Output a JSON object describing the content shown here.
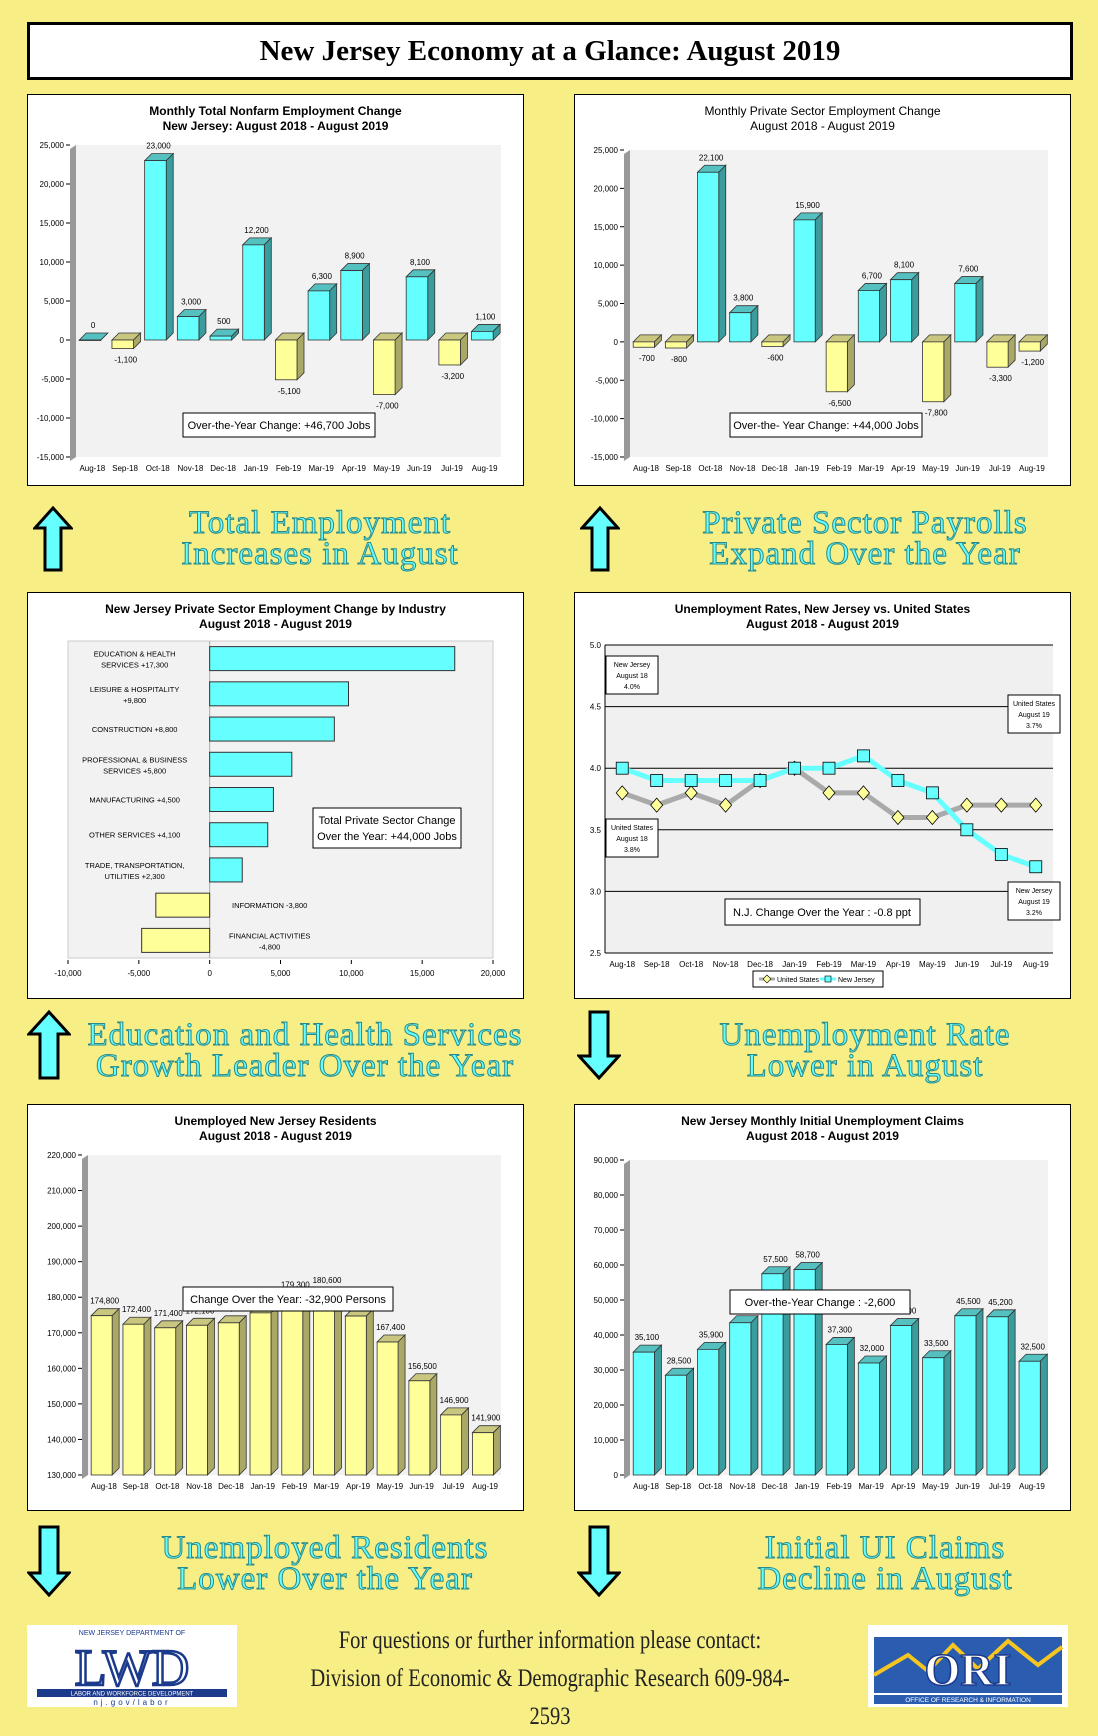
{
  "page": {
    "title": "New Jersey Economy at a Glance: August 2019",
    "footer_line1": "For questions or further information please contact:",
    "footer_line2": "Division of Economic & Demographic Research 609-984-2593",
    "logo_left": {
      "top_text": "NEW JERSEY DEPARTMENT OF",
      "main": "LWD",
      "sub": "LABOR AND WORKFORCE DEVELOPMENT",
      "url_text": "nj.gov/labor"
    },
    "logo_right": {
      "main": "ORI",
      "sub": "OFFICE OF RESEARCH & INFORMATION"
    },
    "colors": {
      "background": "#f7ef86",
      "cyan": "#66ffff",
      "yellow": "#ffff99",
      "headline": "#66ffff"
    }
  },
  "headlines": [
    {
      "line1": "Total Employment",
      "line2": "Increases in August",
      "arrow": "up"
    },
    {
      "line1": "Private Sector Payrolls",
      "line2": "Expand Over the Year",
      "arrow": "up"
    },
    {
      "line1": "Education and Health Services",
      "line2": "Growth Leader Over the Year",
      "arrow": "up"
    },
    {
      "line1": "Unemployment Rate",
      "line2": "Lower in August",
      "arrow": "down"
    },
    {
      "line1": "Unemployed Residents",
      "line2": "Lower Over the Year",
      "arrow": "down"
    },
    {
      "line1": "Initial UI Claims",
      "line2": "Decline in August",
      "arrow": "down"
    }
  ],
  "chart_data": [
    {
      "id": "total-nonfarm",
      "type": "bar",
      "title": "Monthly Total Nonfarm Employment Change",
      "subtitle": "New Jersey: August 2018 - August 2019",
      "categories": [
        "Aug-18",
        "Sep-18",
        "Oct-18",
        "Nov-18",
        "Dec-18",
        "Jan-19",
        "Feb-19",
        "Mar-19",
        "Apr-19",
        "May-19",
        "Jun-19",
        "Jul-19",
        "Aug-19"
      ],
      "values": [
        0,
        -1100,
        23000,
        3000,
        500,
        12200,
        -5100,
        6300,
        8900,
        -7000,
        8100,
        -3200,
        1100
      ],
      "labels": [
        "0",
        "-1,100",
        "23,000",
        "3,000",
        "500",
        "12,200",
        "-5,100",
        "6,300",
        "8,900",
        "-7,000",
        "8,100",
        "-3,200",
        "1,100"
      ],
      "ylim": [
        -15000,
        25000
      ],
      "yticks": [
        25000,
        20000,
        15000,
        10000,
        5000,
        0,
        -5000,
        -10000,
        -15000
      ],
      "ytick_labels": [
        "25,000",
        "20,000",
        "15,000",
        "10,000",
        "5,000",
        "0",
        "-5,000",
        "-10,000",
        "-15,000"
      ],
      "annotation": "Over-the-Year Change: +46,700 Jobs",
      "xlabel": "",
      "ylabel": ""
    },
    {
      "id": "private-sector",
      "type": "bar",
      "title": "Monthly Private Sector Employment Change",
      "subtitle": "August 2018 - August 2019",
      "categories": [
        "Aug-18",
        "Sep-18",
        "Oct-18",
        "Nov-18",
        "Dec-18",
        "Jan-19",
        "Feb-19",
        "Mar-19",
        "Apr-19",
        "May-19",
        "Jun-19",
        "Jul-19",
        "Aug-19"
      ],
      "values": [
        -700,
        -800,
        22100,
        3800,
        -600,
        15900,
        -6500,
        6700,
        8100,
        -7800,
        7600,
        -3300,
        -1200
      ],
      "labels": [
        "-700",
        "-800",
        "22,100",
        "3,800",
        "-600",
        "15,900",
        "-6,500",
        "6,700",
        "8,100",
        "-7,800",
        "7,600",
        "-3,300",
        "-1,200"
      ],
      "ylim": [
        -15000,
        25000
      ],
      "yticks": [
        25000,
        20000,
        15000,
        10000,
        5000,
        0,
        -5000,
        -10000,
        -15000
      ],
      "ytick_labels": [
        "25,000",
        "20,000",
        "15,000",
        "10,000",
        "5,000",
        "0",
        "-5,000",
        "-10,000",
        "-15,000"
      ],
      "annotation": "Over-the- Year Change: +44,000 Jobs",
      "xlabel": "",
      "ylabel": ""
    },
    {
      "id": "by-industry",
      "type": "bar",
      "orientation": "horizontal",
      "title": "New Jersey Private Sector Employment Change by Industry",
      "subtitle": "August 2018 - August 2019",
      "categories": [
        "EDUCATION & HEALTH SERVICES +17,300",
        "LEISURE & HOSPITALITY +9,800",
        "CONSTRUCTION +8,800",
        "PROFESSIONAL & BUSINESS SERVICES +5,800",
        "MANUFACTURING +4,500",
        "OTHER SERVICES +4,100",
        "TRADE, TRANSPORTATION, UTILITIES +2,300",
        "INFORMATION -3,800",
        "FINANCIAL ACTIVITIES -4,800"
      ],
      "label_lines": [
        [
          "EDUCATION & HEALTH",
          "SERVICES +17,300"
        ],
        [
          "LEISURE & HOSPITALITY",
          "+9,800"
        ],
        [
          "CONSTRUCTION +8,800"
        ],
        [
          "PROFESSIONAL & BUSINESS",
          "SERVICES +5,800"
        ],
        [
          "MANUFACTURING +4,500"
        ],
        [
          "OTHER SERVICES +4,100"
        ],
        [
          "TRADE, TRANSPORTATION,",
          "UTILITIES +2,300"
        ],
        [
          "INFORMATION -3,800"
        ],
        [
          "FINANCIAL ACTIVITIES",
          "-4,800"
        ]
      ],
      "values": [
        17300,
        9800,
        8800,
        5800,
        4500,
        4100,
        2300,
        -3800,
        -4800
      ],
      "xlim": [
        -10000,
        20000
      ],
      "xticks": [
        -10000,
        -5000,
        0,
        5000,
        10000,
        15000,
        20000
      ],
      "xtick_labels": [
        "-10,000",
        "-5,000",
        "0",
        "5,000",
        "10,000",
        "15,000",
        "20,000"
      ],
      "annotation_line1": "Total Private Sector Change",
      "annotation_line2": "Over the Year: +44,000 Jobs"
    },
    {
      "id": "unemployment-rates",
      "type": "line",
      "title": "Unemployment Rates, New Jersey vs. United States",
      "subtitle": "August 2018 - August 2019",
      "x": [
        "Aug-18",
        "Sep-18",
        "Oct-18",
        "Nov-18",
        "Dec-18",
        "Jan-19",
        "Feb-19",
        "Mar-19",
        "Apr-19",
        "May-19",
        "Jun-19",
        "Jul-19",
        "Aug-19"
      ],
      "series": [
        {
          "name": "United States",
          "values": [
            3.8,
            3.7,
            3.8,
            3.7,
            3.9,
            4.0,
            3.8,
            3.8,
            3.6,
            3.6,
            3.7,
            3.7,
            3.7
          ],
          "color": "#aaaaaa",
          "marker": "diamond"
        },
        {
          "name": "New Jersey",
          "values": [
            4.0,
            3.9,
            3.9,
            3.9,
            3.9,
            4.0,
            4.0,
            4.1,
            3.9,
            3.8,
            3.5,
            3.3,
            3.2
          ],
          "color": "#66ffff",
          "marker": "square"
        }
      ],
      "ylim": [
        2.5,
        5.0
      ],
      "yticks": [
        5.0,
        4.5,
        4.0,
        3.5,
        3.0,
        2.5
      ],
      "ytick_labels": [
        "5.0",
        "4.5",
        "4.0",
        "3.5",
        "3.0",
        "2.5"
      ],
      "grid": true,
      "legend": "bottom",
      "callouts": [
        {
          "lines": [
            "New Jersey",
            "August 18",
            "4.0%"
          ]
        },
        {
          "lines": [
            "United States",
            "August 18",
            "3.8%"
          ]
        },
        {
          "lines": [
            "United States",
            "August 19",
            "3.7%"
          ]
        },
        {
          "lines": [
            "New Jersey",
            "August 19",
            "3.2%"
          ]
        }
      ],
      "annotation": "N.J. Change Over the Year : -0.8 ppt"
    },
    {
      "id": "unemployed-residents",
      "type": "bar",
      "title": "Unemployed New Jersey Residents",
      "subtitle": "August 2018 - August 2019",
      "categories": [
        "Aug-18",
        "Sep-18",
        "Oct-18",
        "Nov-18",
        "Dec-18",
        "Jan-19",
        "Feb-19",
        "Mar-19",
        "Apr-19",
        "May-19",
        "Jun-19",
        "Jul-19",
        "Aug-19"
      ],
      "values": [
        174800,
        172400,
        171400,
        172100,
        172800,
        175600,
        179300,
        180600,
        174700,
        167400,
        156500,
        146900,
        141900
      ],
      "labels": [
        "174,800",
        "172,400",
        "171,400",
        "172,100",
        "172,800",
        "175,600",
        "179,300",
        "180,600",
        "174,700",
        "167,400",
        "156,500",
        "146,900",
        "141,900"
      ],
      "ylim": [
        130000,
        220000
      ],
      "yticks": [
        220000,
        210000,
        200000,
        190000,
        180000,
        170000,
        160000,
        150000,
        140000,
        130000
      ],
      "ytick_labels": [
        "220,000",
        "210,000",
        "200,000",
        "190,000",
        "180,000",
        "170,000",
        "160,000",
        "150,000",
        "140,000",
        "130,000"
      ],
      "annotation": "Change Over the Year: -32,900 Persons"
    },
    {
      "id": "initial-claims",
      "type": "bar",
      "title": "New Jersey Monthly Initial Unemployment Claims",
      "subtitle": "August 2018 - August 2019",
      "categories": [
        "Aug-18",
        "Sep-18",
        "Oct-18",
        "Nov-18",
        "Dec-18",
        "Jan-19",
        "Feb-19",
        "Mar-19",
        "Apr-19",
        "May-19",
        "Jun-19",
        "Jul-19",
        "Aug-19"
      ],
      "values": [
        35100,
        28500,
        35900,
        43500,
        57500,
        58700,
        37300,
        32000,
        42700,
        33500,
        45500,
        45200,
        32500
      ],
      "labels": [
        "35,100",
        "28,500",
        "35,900",
        "43,500",
        "57,500",
        "58,700",
        "37,300",
        "32,000",
        "42,700",
        "33,500",
        "45,500",
        "45,200",
        "32,500"
      ],
      "ylim": [
        0,
        90000
      ],
      "yticks": [
        90000,
        80000,
        70000,
        60000,
        50000,
        40000,
        30000,
        20000,
        10000,
        0
      ],
      "ytick_labels": [
        "90,000",
        "80,000",
        "70,000",
        "60,000",
        "50,000",
        "40,000",
        "30,000",
        "20,000",
        "10,000",
        "0"
      ],
      "annotation": "Over-the-Year Change : -2,600"
    }
  ]
}
